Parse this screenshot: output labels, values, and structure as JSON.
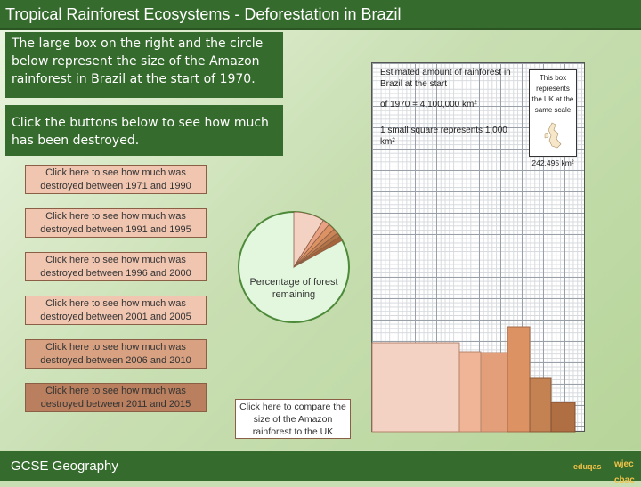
{
  "header": {
    "title": "Tropical Rainforest Ecosystems - Deforestation in Brazil"
  },
  "intro": {
    "text": "The large box on the right and the circle below represent the size of the Amazon rainforest in Brazil at the start of 1970."
  },
  "instructions": {
    "text": "Click the buttons below to see how much has been destroyed."
  },
  "buttons": [
    {
      "label": "Click here to see how much was destroyed between 1971 and 1990"
    },
    {
      "label": "Click here to see how much was destroyed between 1991 and 1995"
    },
    {
      "label": "Click here to see how much was destroyed between 1996 and 2000"
    },
    {
      "label": "Click here to see how much was destroyed between 2001 and 2005"
    },
    {
      "label": "Click here to see how much was destroyed between 2006 and 2010"
    },
    {
      "label": "Click here to see how much was destroyed between 2011 and 2015"
    }
  ],
  "compare_button": {
    "label": "Click here to compare the size of the Amazon rainforest to the UK"
  },
  "pie": {
    "label": "Percentage of forest remaining",
    "remaining_percent": 83,
    "slices": [
      {
        "color": "#f4d2c3"
      },
      {
        "color": "#e8a283"
      },
      {
        "color": "#dd9264"
      },
      {
        "color": "#c98558"
      },
      {
        "color": "#b57446"
      },
      {
        "color": "#a5653c"
      }
    ]
  },
  "grid": {
    "estimate_text": "Estimated amount of rainforest in Brazil at the start",
    "estimate_value": "of 1970 = 4,100,000 km²",
    "scale_text": "1 small square represents 1,000 km²"
  },
  "uk": {
    "box_text": "This box represents the UK at the same scale",
    "area": "242,495 km²"
  },
  "footer": {
    "brand": "GCSE Geography",
    "logo1": "eduqas",
    "logo2": "wjec cbac"
  }
}
